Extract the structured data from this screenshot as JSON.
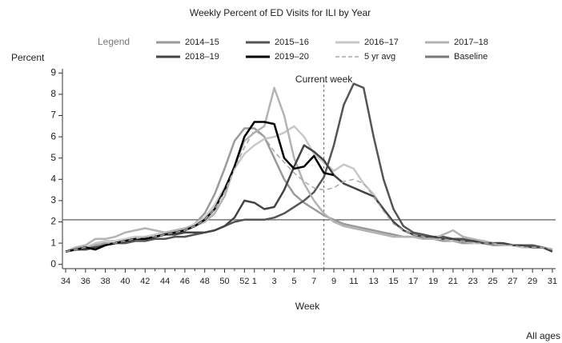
{
  "chart_data": {
    "type": "line",
    "title": "Weekly Percent of ED Visits for ILI by Year",
    "legend_title": "Legend",
    "y_label": "Percent",
    "x_label": "Week",
    "footnote": "All ages",
    "current_week": {
      "text": "Current week",
      "week": 8
    },
    "categories": [
      34,
      null,
      36,
      null,
      38,
      null,
      40,
      null,
      42,
      null,
      44,
      null,
      46,
      null,
      48,
      null,
      50,
      null,
      52,
      1,
      null,
      3,
      null,
      5,
      null,
      7,
      null,
      9,
      null,
      11,
      null,
      13,
      null,
      15,
      null,
      17,
      null,
      19,
      null,
      21,
      null,
      23,
      null,
      25,
      null,
      27,
      null,
      29,
      null,
      31
    ],
    "ylim": [
      -0.2,
      9.2
    ],
    "yticks": [
      0,
      1,
      2,
      3,
      4,
      5,
      6,
      7,
      8,
      9
    ],
    "series": [
      {
        "name": "2014–15",
        "color": "#9a9a9a",
        "values": [
          0.6,
          0.7,
          0.8,
          0.9,
          1.0,
          1.0,
          1.1,
          1.2,
          1.2,
          1.3,
          1.4,
          1.5,
          1.6,
          1.9,
          2.4,
          3.3,
          4.5,
          5.8,
          6.4,
          6.4,
          6.0,
          5.0,
          4.0,
          3.3,
          2.9,
          2.6,
          2.3,
          2.1,
          1.9,
          1.8,
          1.7,
          1.6,
          1.5,
          1.4,
          1.3,
          1.3,
          1.2,
          1.2,
          1.1,
          1.1,
          1.0,
          1.0,
          1.0,
          0.9,
          0.9,
          0.9,
          0.8,
          0.8,
          0.8,
          0.7
        ]
      },
      {
        "name": "2015–16",
        "color": "#555555",
        "values": [
          0.6,
          0.7,
          0.8,
          0.8,
          0.9,
          1.0,
          1.0,
          1.1,
          1.1,
          1.2,
          1.2,
          1.3,
          1.3,
          1.4,
          1.5,
          1.6,
          1.8,
          2.0,
          2.1,
          2.1,
          2.1,
          2.2,
          2.4,
          2.7,
          3.0,
          3.4,
          4.1,
          5.6,
          7.5,
          8.5,
          8.3,
          6.0,
          4.0,
          2.6,
          1.8,
          1.5,
          1.4,
          1.3,
          1.3,
          1.2,
          1.2,
          1.1,
          1.1,
          1.0,
          1.0,
          0.9,
          0.9,
          0.9,
          0.8,
          0.7
        ]
      },
      {
        "name": "2016–17",
        "color": "#c8c8c8",
        "values": [
          0.6,
          0.7,
          0.8,
          1.0,
          1.1,
          1.1,
          1.2,
          1.3,
          1.3,
          1.4,
          1.5,
          1.6,
          1.7,
          1.9,
          2.2,
          2.8,
          3.6,
          4.5,
          5.2,
          5.6,
          5.9,
          6.0,
          6.2,
          6.5,
          6.0,
          5.2,
          4.8,
          4.4,
          4.7,
          4.5,
          3.8,
          3.3,
          2.6,
          2.0,
          1.6,
          1.4,
          1.3,
          1.2,
          1.2,
          1.1,
          1.1,
          1.0,
          1.0,
          1.0,
          0.9,
          0.9,
          0.8,
          0.8,
          0.8,
          0.7
        ]
      },
      {
        "name": "2017–18",
        "color": "#b3b3b3",
        "values": [
          0.6,
          0.8,
          0.9,
          1.2,
          1.2,
          1.3,
          1.5,
          1.6,
          1.7,
          1.6,
          1.5,
          1.6,
          1.7,
          1.8,
          2.0,
          2.4,
          3.2,
          4.6,
          5.8,
          6.2,
          6.5,
          8.3,
          7.0,
          5.0,
          3.8,
          3.0,
          2.4,
          2.0,
          1.8,
          1.7,
          1.6,
          1.5,
          1.4,
          1.3,
          1.3,
          1.3,
          1.2,
          1.2,
          1.4,
          1.6,
          1.3,
          1.2,
          1.1,
          1.0,
          1.0,
          0.9,
          0.9,
          0.8,
          0.8,
          0.7
        ]
      },
      {
        "name": "2018–19",
        "color": "#444444",
        "values": [
          0.6,
          0.7,
          0.7,
          0.8,
          0.9,
          1.0,
          1.1,
          1.2,
          1.2,
          1.3,
          1.4,
          1.4,
          1.5,
          1.5,
          1.5,
          1.6,
          1.8,
          2.2,
          3.0,
          2.9,
          2.6,
          2.7,
          3.5,
          4.6,
          5.6,
          5.3,
          4.9,
          4.2,
          3.8,
          3.6,
          3.4,
          3.2,
          2.6,
          2.0,
          1.6,
          1.4,
          1.3,
          1.3,
          1.2,
          1.2,
          1.1,
          1.1,
          1.0,
          1.0,
          1.0,
          0.9,
          0.9,
          0.8,
          0.8,
          0.6
        ]
      },
      {
        "name": "2019–20",
        "color": "#000000",
        "values": [
          0.6,
          0.7,
          0.8,
          0.7,
          0.9,
          1.0,
          1.1,
          1.2,
          1.2,
          1.3,
          1.4,
          1.5,
          1.6,
          1.8,
          2.1,
          2.6,
          3.5,
          4.6,
          6.0,
          6.7,
          6.7,
          6.6,
          5.0,
          4.5,
          4.6,
          5.1,
          4.3,
          4.2,
          null,
          null,
          null,
          null,
          null,
          null,
          null,
          null,
          null,
          null,
          null,
          null,
          null,
          null,
          null,
          null,
          null,
          null,
          null,
          null,
          null,
          null
        ]
      },
      {
        "name": "5 yr avg",
        "color": "#aaaaaa",
        "dash": true,
        "values": [
          0.6,
          0.7,
          0.8,
          0.9,
          1.0,
          1.0,
          1.1,
          1.2,
          1.3,
          1.3,
          1.4,
          1.5,
          1.6,
          1.8,
          2.1,
          2.6,
          3.4,
          4.5,
          5.5,
          6.3,
          6.0,
          5.3,
          4.8,
          4.3,
          3.9,
          3.6,
          3.5,
          3.6,
          3.9,
          4.0,
          3.8,
          3.2,
          2.5,
          1.9,
          1.6,
          1.4,
          1.3,
          1.2,
          1.2,
          1.1,
          1.1,
          1.0,
          1.0,
          1.0,
          0.9,
          0.9,
          0.8,
          0.8,
          0.8,
          0.7
        ]
      }
    ],
    "baseline": {
      "name": "Baseline",
      "value": 2.1,
      "color": "#777777"
    }
  }
}
